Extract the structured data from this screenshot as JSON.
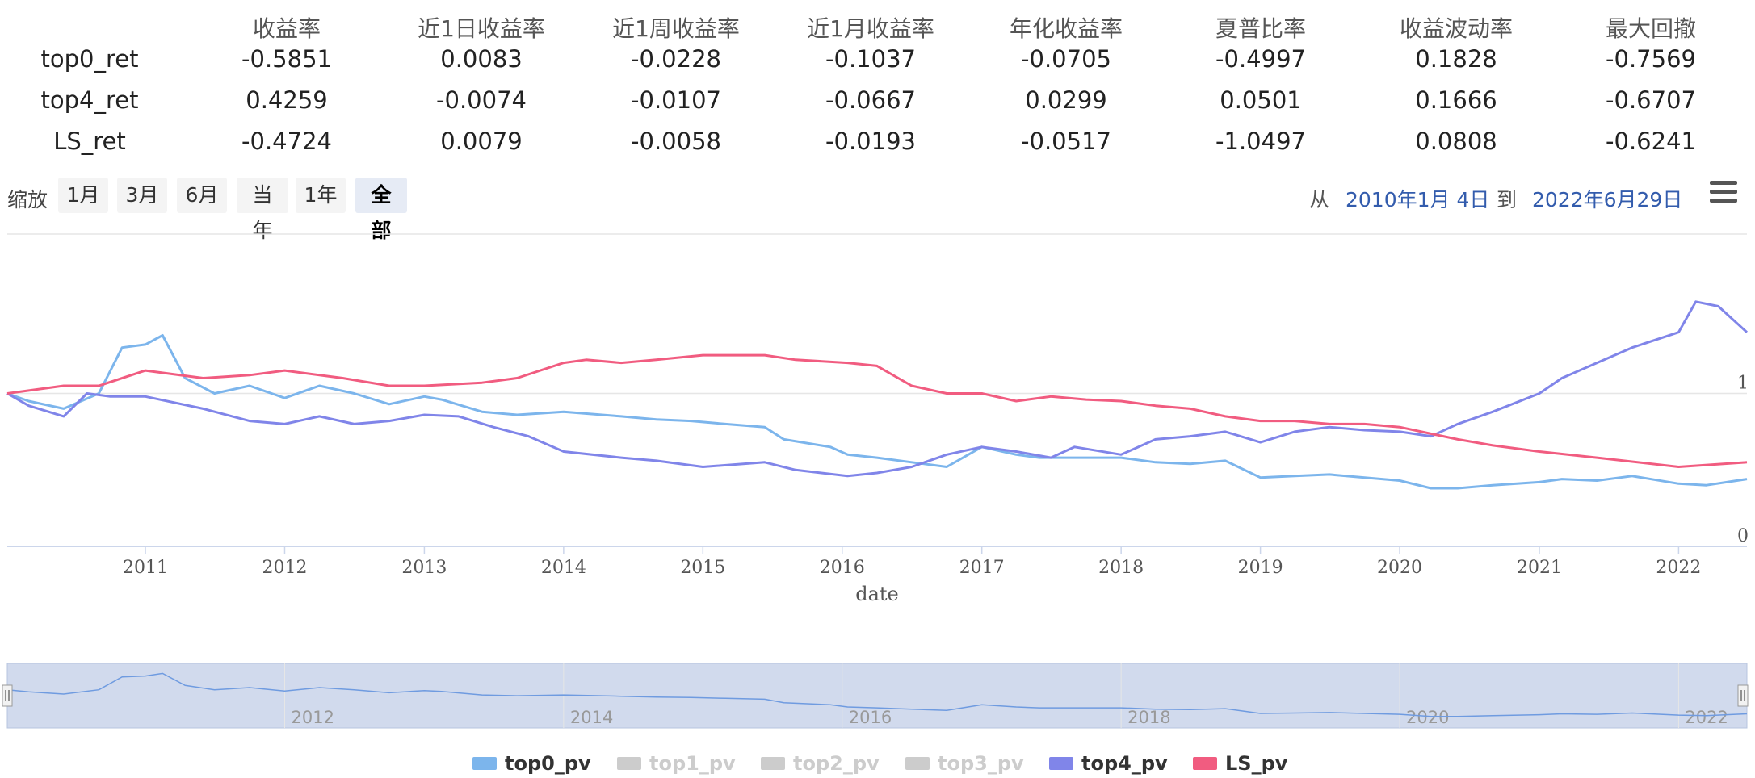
{
  "table": {
    "headers": [
      "收益率",
      "近1日收益率",
      "近1周收益率",
      "近1月收益率",
      "年化收益率",
      "夏普比率",
      "收益波动率",
      "最大回撤"
    ],
    "rows": [
      {
        "name": "top0_ret",
        "values": [
          "-0.5851",
          "0.0083",
          "-0.0228",
          "-0.1037",
          "-0.0705",
          "-0.4997",
          "0.1828",
          "-0.7569"
        ]
      },
      {
        "name": "top4_ret",
        "values": [
          "0.4259",
          "-0.0074",
          "-0.0107",
          "-0.0667",
          "0.0299",
          "0.0501",
          "0.1666",
          "-0.6707"
        ]
      },
      {
        "name": "LS_ret",
        "values": [
          "-0.4724",
          "0.0079",
          "-0.0058",
          "-0.0193",
          "-0.0517",
          "-1.0497",
          "0.0808",
          "-0.6241"
        ]
      }
    ]
  },
  "range_selector": {
    "zoom_label": "缩放",
    "buttons": [
      "1月",
      "3月",
      "6月",
      "当年",
      "1年",
      "全部"
    ],
    "active_button": "全部",
    "from_label": "从",
    "from_date": "2010年1月 4日",
    "to_label": "到",
    "to_date": "2022年6月29日"
  },
  "navigator": {
    "labels": [
      "2012",
      "2014",
      "2016",
      "2018",
      "2020",
      "2022"
    ]
  },
  "legend": [
    {
      "name": "top0_pv",
      "color": "#7cb5ec",
      "visible": true
    },
    {
      "name": "top1_pv",
      "color": "#cccccc",
      "visible": false
    },
    {
      "name": "top2_pv",
      "color": "#cccccc",
      "visible": false
    },
    {
      "name": "top3_pv",
      "color": "#cccccc",
      "visible": false
    },
    {
      "name": "top4_pv",
      "color": "#8085e9",
      "visible": true
    },
    {
      "name": "LS_pv",
      "color": "#f15c80",
      "visible": true
    }
  ],
  "chart_data": {
    "type": "line",
    "xlabel": "date",
    "ylabel": "",
    "x_range": [
      "2010-01-04",
      "2022-06-29"
    ],
    "x_ticks": [
      "2011",
      "2012",
      "2013",
      "2014",
      "2015",
      "2016",
      "2017",
      "2018",
      "2019",
      "2020",
      "2021",
      "2022"
    ],
    "y_ticks": [
      0,
      1
    ],
    "ylim": [
      0,
      2.0
    ],
    "grid": true,
    "series": [
      {
        "name": "top0_pv",
        "color": "#7cb5ec",
        "x": [
          "2010-01-04",
          "2010-03-01",
          "2010-06-01",
          "2010-09-01",
          "2010-11-01",
          "2011-01-01",
          "2011-02-15",
          "2011-04-15",
          "2011-07-01",
          "2011-10-01",
          "2012-01-01",
          "2012-04-01",
          "2012-07-01",
          "2012-10-01",
          "2013-01-01",
          "2013-02-15",
          "2013-06-01",
          "2013-09-01",
          "2014-01-01",
          "2014-06-01",
          "2014-09-01",
          "2014-12-01",
          "2015-03-01",
          "2015-06-12",
          "2015-08-01",
          "2015-12-01",
          "2016-01-15",
          "2016-04-01",
          "2016-07-01",
          "2016-10-01",
          "2017-01-01",
          "2017-04-01",
          "2017-06-01",
          "2017-09-01",
          "2018-01-01",
          "2018-04-01",
          "2018-07-01",
          "2018-10-01",
          "2019-01-01",
          "2019-04-01",
          "2019-07-01",
          "2019-10-01",
          "2020-01-01",
          "2020-03-23",
          "2020-06-01",
          "2020-09-01",
          "2021-01-01",
          "2021-03-01",
          "2021-06-01",
          "2021-09-01",
          "2022-01-01",
          "2022-03-15",
          "2022-06-29"
        ],
        "values": [
          1.0,
          0.95,
          0.9,
          1.0,
          1.3,
          1.32,
          1.38,
          1.1,
          1.0,
          1.05,
          0.97,
          1.05,
          1.0,
          0.93,
          0.98,
          0.96,
          0.88,
          0.86,
          0.88,
          0.85,
          0.83,
          0.82,
          0.8,
          0.78,
          0.7,
          0.65,
          0.6,
          0.58,
          0.55,
          0.52,
          0.65,
          0.6,
          0.58,
          0.58,
          0.58,
          0.55,
          0.54,
          0.56,
          0.45,
          0.46,
          0.47,
          0.45,
          0.43,
          0.38,
          0.38,
          0.4,
          0.42,
          0.44,
          0.43,
          0.46,
          0.41,
          0.4,
          0.44
        ]
      },
      {
        "name": "top4_pv",
        "color": "#8085e9",
        "x": [
          "2010-01-04",
          "2010-03-01",
          "2010-06-01",
          "2010-08-01",
          "2010-10-01",
          "2011-01-01",
          "2011-06-01",
          "2011-10-01",
          "2012-01-01",
          "2012-04-01",
          "2012-07-01",
          "2012-10-01",
          "2013-01-01",
          "2013-04-01",
          "2013-07-01",
          "2013-10-01",
          "2014-01-01",
          "2014-06-01",
          "2014-09-01",
          "2015-01-01",
          "2015-06-12",
          "2015-09-01",
          "2016-01-15",
          "2016-04-01",
          "2016-07-01",
          "2016-10-01",
          "2017-01-01",
          "2017-04-01",
          "2017-07-01",
          "2017-09-01",
          "2018-01-01",
          "2018-04-01",
          "2018-07-01",
          "2018-10-01",
          "2019-01-01",
          "2019-04-01",
          "2019-07-01",
          "2019-10-01",
          "2020-01-01",
          "2020-03-23",
          "2020-06-01",
          "2020-09-01",
          "2021-01-01",
          "2021-03-01",
          "2021-06-01",
          "2021-09-01",
          "2022-01-01",
          "2022-02-15",
          "2022-04-15",
          "2022-06-29"
        ],
        "values": [
          1.0,
          0.92,
          0.85,
          1.0,
          0.98,
          0.98,
          0.9,
          0.82,
          0.8,
          0.85,
          0.8,
          0.82,
          0.86,
          0.85,
          0.78,
          0.72,
          0.62,
          0.58,
          0.56,
          0.52,
          0.55,
          0.5,
          0.46,
          0.48,
          0.52,
          0.6,
          0.65,
          0.62,
          0.58,
          0.65,
          0.6,
          0.7,
          0.72,
          0.75,
          0.68,
          0.75,
          0.78,
          0.76,
          0.75,
          0.72,
          0.8,
          0.88,
          1.0,
          1.1,
          1.2,
          1.3,
          1.4,
          1.6,
          1.57,
          1.4
        ]
      },
      {
        "name": "LS_pv",
        "color": "#f15c80",
        "x": [
          "2010-01-04",
          "2010-06-01",
          "2010-09-01",
          "2011-01-01",
          "2011-06-01",
          "2011-10-01",
          "2012-01-01",
          "2012-06-01",
          "2012-10-01",
          "2013-01-01",
          "2013-06-01",
          "2013-09-01",
          "2014-01-01",
          "2014-03-01",
          "2014-06-01",
          "2014-09-01",
          "2015-01-01",
          "2015-06-12",
          "2015-09-01",
          "2016-01-15",
          "2016-04-01",
          "2016-07-01",
          "2016-10-01",
          "2017-01-01",
          "2017-04-01",
          "2017-07-01",
          "2017-10-01",
          "2018-01-01",
          "2018-04-01",
          "2018-07-01",
          "2018-10-01",
          "2019-01-01",
          "2019-04-01",
          "2019-07-01",
          "2019-10-01",
          "2020-01-01",
          "2020-06-01",
          "2020-09-01",
          "2021-01-01",
          "2021-06-01",
          "2022-01-01",
          "2022-06-29"
        ],
        "values": [
          1.0,
          1.05,
          1.05,
          1.15,
          1.1,
          1.12,
          1.15,
          1.1,
          1.05,
          1.05,
          1.07,
          1.1,
          1.2,
          1.22,
          1.2,
          1.22,
          1.25,
          1.25,
          1.22,
          1.2,
          1.18,
          1.05,
          1.0,
          1.0,
          0.95,
          0.98,
          0.96,
          0.95,
          0.92,
          0.9,
          0.85,
          0.82,
          0.82,
          0.8,
          0.8,
          0.78,
          0.7,
          0.66,
          0.62,
          0.58,
          0.52,
          0.55
        ]
      }
    ]
  }
}
